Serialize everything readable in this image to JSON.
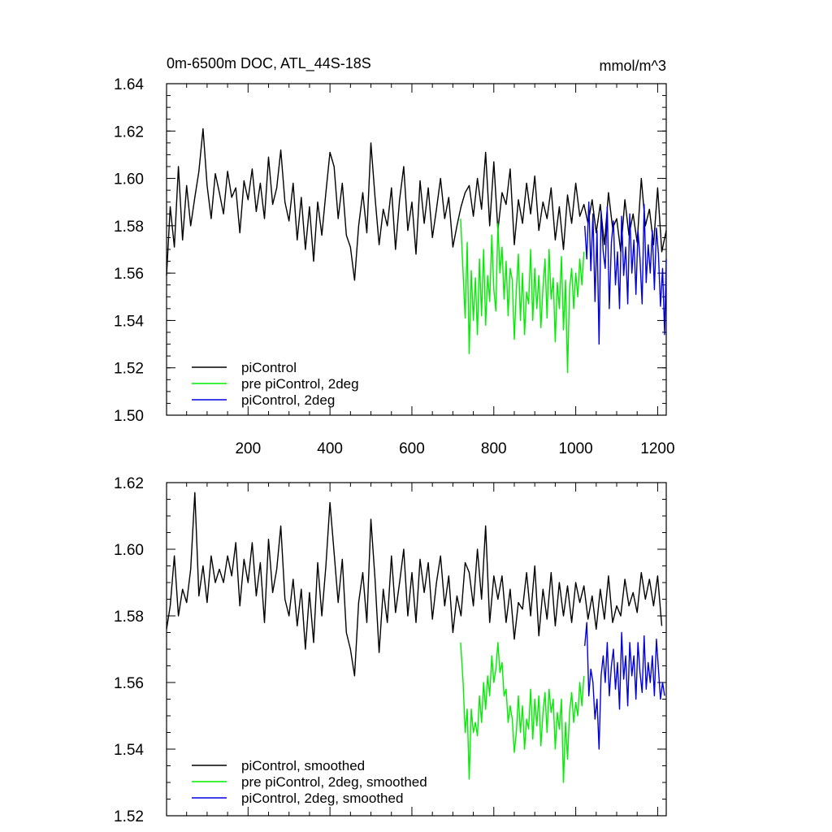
{
  "chart_data": [
    {
      "type": "line",
      "title": "0m-6500m DOC, ATL_44S-18S",
      "units": "mmol/m^3",
      "xlim": [
        1,
        1221
      ],
      "ylim": [
        1.5,
        1.64
      ],
      "xticks": [
        200,
        400,
        600,
        800,
        1000,
        1200
      ],
      "yticks": [
        1.5,
        1.52,
        1.54,
        1.56,
        1.58,
        1.6,
        1.62,
        1.64
      ],
      "ytick_labels": [
        "1.50",
        "1.52",
        "1.54",
        "1.56",
        "1.58",
        "1.60",
        "1.62",
        "1.64"
      ],
      "grid": false,
      "legend_position": "bottom-left",
      "series": [
        {
          "name": "piControl",
          "color": "#000000",
          "x": [
            1,
            10,
            20,
            30,
            40,
            50,
            60,
            70,
            80,
            90,
            100,
            110,
            120,
            130,
            140,
            150,
            160,
            170,
            180,
            190,
            200,
            210,
            220,
            230,
            240,
            250,
            260,
            270,
            280,
            290,
            300,
            310,
            320,
            330,
            340,
            350,
            360,
            370,
            380,
            390,
            400,
            410,
            420,
            430,
            440,
            450,
            460,
            470,
            480,
            490,
            500,
            510,
            520,
            530,
            540,
            550,
            560,
            570,
            580,
            590,
            600,
            610,
            620,
            630,
            640,
            650,
            660,
            670,
            680,
            690,
            700,
            710,
            720,
            730,
            740,
            750,
            760,
            770,
            780,
            790,
            800,
            810,
            820,
            830,
            840,
            850,
            860,
            870,
            880,
            890,
            900,
            910,
            920,
            930,
            940,
            950,
            960,
            970,
            980,
            990,
            1000,
            1010,
            1020,
            1030,
            1040,
            1050,
            1060,
            1070,
            1080,
            1090,
            1100,
            1110,
            1120,
            1130,
            1140,
            1150,
            1160,
            1170,
            1180,
            1190,
            1200,
            1210,
            1221
          ],
          "y": [
            1.559,
            1.588,
            1.571,
            1.605,
            1.574,
            1.597,
            1.58,
            1.592,
            1.603,
            1.621,
            1.597,
            1.583,
            1.602,
            1.594,
            1.585,
            1.603,
            1.592,
            1.596,
            1.577,
            1.599,
            1.591,
            1.604,
            1.586,
            1.598,
            1.583,
            1.609,
            1.589,
            1.596,
            1.612,
            1.59,
            1.582,
            1.598,
            1.574,
            1.592,
            1.57,
            1.588,
            1.565,
            1.59,
            1.576,
            1.594,
            1.611,
            1.605,
            1.583,
            1.598,
            1.576,
            1.571,
            1.557,
            1.58,
            1.594,
            1.577,
            1.615,
            1.592,
            1.572,
            1.587,
            1.58,
            1.596,
            1.57,
            1.591,
            1.605,
            1.578,
            1.59,
            1.568,
            1.599,
            1.581,
            1.596,
            1.575,
            1.587,
            1.6,
            1.583,
            1.592,
            1.571,
            1.58,
            1.588,
            1.594,
            1.597,
            1.584,
            1.6,
            1.587,
            1.611,
            1.58,
            1.607,
            1.578,
            1.594,
            1.589,
            1.604,
            1.572,
            1.591,
            1.581,
            1.598,
            1.585,
            1.601,
            1.578,
            1.59,
            1.583,
            1.596,
            1.574,
            1.588,
            1.57,
            1.593,
            1.581,
            1.598,
            1.584,
            1.589,
            1.581,
            1.591,
            1.577,
            1.589,
            1.572,
            1.594,
            1.579,
            1.583,
            1.569,
            1.591,
            1.576,
            1.585,
            1.573,
            1.6,
            1.58,
            1.587,
            1.572,
            1.596,
            1.569,
            1.578
          ]
        },
        {
          "name": "pre piControl, 2deg",
          "color": "#00ee00",
          "x": [
            719,
            725,
            730,
            735,
            740,
            745,
            750,
            755,
            760,
            765,
            770,
            775,
            780,
            785,
            790,
            795,
            800,
            805,
            810,
            815,
            820,
            825,
            830,
            835,
            840,
            845,
            850,
            855,
            860,
            865,
            870,
            875,
            880,
            885,
            890,
            895,
            900,
            905,
            910,
            915,
            920,
            925,
            930,
            935,
            940,
            945,
            950,
            955,
            960,
            965,
            970,
            975,
            980,
            985,
            990,
            995,
            1000,
            1005,
            1010,
            1015,
            1020
          ],
          "y": [
            1.583,
            1.56,
            1.541,
            1.573,
            1.526,
            1.561,
            1.54,
            1.558,
            1.534,
            1.566,
            1.542,
            1.57,
            1.538,
            1.559,
            1.548,
            1.576,
            1.553,
            1.544,
            1.581,
            1.56,
            1.571,
            1.549,
            1.565,
            1.542,
            1.562,
            1.557,
            1.532,
            1.553,
            1.568,
            1.54,
            1.56,
            1.534,
            1.552,
            1.547,
            1.57,
            1.54,
            1.562,
            1.545,
            1.559,
            1.537,
            1.554,
            1.566,
            1.541,
            1.57,
            1.549,
            1.558,
            1.531,
            1.556,
            1.545,
            1.567,
            1.536,
            1.557,
            1.518,
            1.553,
            1.562,
            1.545,
            1.56,
            1.55,
            1.566,
            1.555,
            1.569
          ]
        },
        {
          "name": "piControl, 2deg",
          "color": "#0000dd",
          "x": [
            1022,
            1027,
            1032,
            1037,
            1042,
            1047,
            1052,
            1057,
            1062,
            1067,
            1072,
            1077,
            1082,
            1087,
            1092,
            1097,
            1102,
            1107,
            1112,
            1117,
            1122,
            1127,
            1132,
            1137,
            1142,
            1147,
            1152,
            1157,
            1162,
            1167,
            1172,
            1177,
            1182,
            1187,
            1192,
            1197,
            1202,
            1207,
            1212,
            1217,
            1221
          ],
          "y": [
            1.58,
            1.566,
            1.59,
            1.561,
            1.585,
            1.548,
            1.578,
            1.53,
            1.586,
            1.569,
            1.562,
            1.588,
            1.545,
            1.573,
            1.582,
            1.555,
            1.569,
            1.545,
            1.584,
            1.559,
            1.571,
            1.547,
            1.585,
            1.56,
            1.574,
            1.551,
            1.578,
            1.566,
            1.547,
            1.589,
            1.556,
            1.572,
            1.56,
            1.578,
            1.553,
            1.579,
            1.568,
            1.546,
            1.562,
            1.534,
            1.566
          ]
        }
      ]
    },
    {
      "type": "line",
      "title": "",
      "xlim": [
        1,
        1221
      ],
      "ylim": [
        1.52,
        1.62
      ],
      "yticks": [
        1.52,
        1.54,
        1.56,
        1.58,
        1.6,
        1.62
      ],
      "ytick_labels": [
        "1.52",
        "1.54",
        "1.56",
        "1.58",
        "1.60",
        "1.62"
      ],
      "grid": false,
      "legend_position": "bottom-left",
      "series": [
        {
          "name": "piControl, smoothed",
          "color": "#000000",
          "x": [
            1,
            10,
            20,
            30,
            40,
            50,
            60,
            70,
            80,
            90,
            100,
            110,
            120,
            130,
            140,
            150,
            160,
            170,
            180,
            190,
            200,
            210,
            220,
            230,
            240,
            250,
            260,
            270,
            280,
            290,
            300,
            310,
            320,
            330,
            340,
            350,
            360,
            370,
            380,
            390,
            400,
            410,
            420,
            430,
            440,
            450,
            460,
            470,
            480,
            490,
            500,
            510,
            520,
            530,
            540,
            550,
            560,
            570,
            580,
            590,
            600,
            610,
            620,
            630,
            640,
            650,
            660,
            670,
            680,
            690,
            700,
            710,
            720,
            730,
            740,
            750,
            760,
            770,
            780,
            790,
            800,
            810,
            820,
            830,
            840,
            850,
            860,
            870,
            880,
            890,
            900,
            910,
            920,
            930,
            940,
            950,
            960,
            970,
            980,
            990,
            1000,
            1010,
            1020,
            1030,
            1040,
            1050,
            1060,
            1070,
            1080,
            1090,
            1100,
            1110,
            1120,
            1130,
            1140,
            1150,
            1160,
            1170,
            1180,
            1190,
            1200,
            1210
          ],
          "y": [
            1.576,
            1.583,
            1.598,
            1.58,
            1.588,
            1.584,
            1.594,
            1.617,
            1.586,
            1.595,
            1.584,
            1.598,
            1.59,
            1.594,
            1.59,
            1.598,
            1.592,
            1.602,
            1.583,
            1.597,
            1.59,
            1.602,
            1.586,
            1.596,
            1.578,
            1.603,
            1.587,
            1.594,
            1.607,
            1.585,
            1.58,
            1.591,
            1.577,
            1.588,
            1.57,
            1.587,
            1.572,
            1.596,
            1.58,
            1.595,
            1.614,
            1.599,
            1.584,
            1.597,
            1.575,
            1.57,
            1.562,
            1.584,
            1.593,
            1.578,
            1.609,
            1.591,
            1.569,
            1.588,
            1.578,
            1.598,
            1.581,
            1.59,
            1.6,
            1.58,
            1.593,
            1.578,
            1.597,
            1.587,
            1.596,
            1.579,
            1.59,
            1.598,
            1.583,
            1.592,
            1.575,
            1.586,
            1.58,
            1.596,
            1.593,
            1.583,
            1.6,
            1.585,
            1.607,
            1.578,
            1.592,
            1.585,
            1.592,
            1.578,
            1.588,
            1.573,
            1.584,
            1.582,
            1.593,
            1.58,
            1.595,
            1.574,
            1.588,
            1.579,
            1.593,
            1.577,
            1.59,
            1.58,
            1.589,
            1.578,
            1.59,
            1.584,
            1.589,
            1.579,
            1.586,
            1.576,
            1.588,
            1.579,
            1.592,
            1.578,
            1.583,
            1.58,
            1.591,
            1.583,
            1.587,
            1.581,
            1.593,
            1.585,
            1.591,
            1.583,
            1.592,
            1.577
          ]
        },
        {
          "name": "pre piControl, 2deg, smoothed",
          "color": "#00ee00",
          "x": [
            719,
            725,
            730,
            735,
            740,
            745,
            750,
            755,
            760,
            765,
            770,
            775,
            780,
            785,
            790,
            795,
            800,
            805,
            810,
            815,
            820,
            825,
            830,
            835,
            840,
            845,
            850,
            855,
            860,
            865,
            870,
            875,
            880,
            885,
            890,
            895,
            900,
            905,
            910,
            915,
            920,
            925,
            930,
            935,
            940,
            945,
            950,
            955,
            960,
            965,
            970,
            975,
            980,
            985,
            990,
            995,
            1000,
            1005,
            1010,
            1015,
            1020
          ],
          "y": [
            1.572,
            1.56,
            1.545,
            1.552,
            1.531,
            1.552,
            1.545,
            1.548,
            1.544,
            1.556,
            1.548,
            1.56,
            1.552,
            1.562,
            1.556,
            1.568,
            1.56,
            1.564,
            1.572,
            1.563,
            1.566,
            1.556,
            1.558,
            1.548,
            1.553,
            1.549,
            1.539,
            1.545,
            1.556,
            1.545,
            1.553,
            1.54,
            1.549,
            1.546,
            1.558,
            1.543,
            1.555,
            1.547,
            1.556,
            1.541,
            1.551,
            1.557,
            1.545,
            1.558,
            1.551,
            1.555,
            1.54,
            1.551,
            1.546,
            1.555,
            1.53,
            1.548,
            1.537,
            1.551,
            1.557,
            1.548,
            1.554,
            1.55,
            1.56,
            1.553,
            1.562
          ]
        },
        {
          "name": "piControl, 2deg, smoothed",
          "color": "#0000dd",
          "x": [
            1022,
            1027,
            1032,
            1037,
            1042,
            1047,
            1052,
            1057,
            1062,
            1067,
            1072,
            1077,
            1082,
            1087,
            1092,
            1097,
            1102,
            1107,
            1112,
            1117,
            1122,
            1127,
            1132,
            1137,
            1142,
            1147,
            1152,
            1157,
            1162,
            1167,
            1172,
            1177,
            1182,
            1187,
            1192,
            1197,
            1202,
            1207,
            1212,
            1217
          ],
          "y": [
            1.571,
            1.578,
            1.556,
            1.564,
            1.56,
            1.549,
            1.555,
            1.54,
            1.562,
            1.568,
            1.56,
            1.572,
            1.556,
            1.565,
            1.57,
            1.558,
            1.566,
            1.552,
            1.575,
            1.561,
            1.568,
            1.553,
            1.572,
            1.562,
            1.568,
            1.555,
            1.572,
            1.563,
            1.557,
            1.574,
            1.558,
            1.566,
            1.56,
            1.568,
            1.556,
            1.573,
            1.564,
            1.555,
            1.56,
            1.556
          ]
        }
      ]
    }
  ]
}
